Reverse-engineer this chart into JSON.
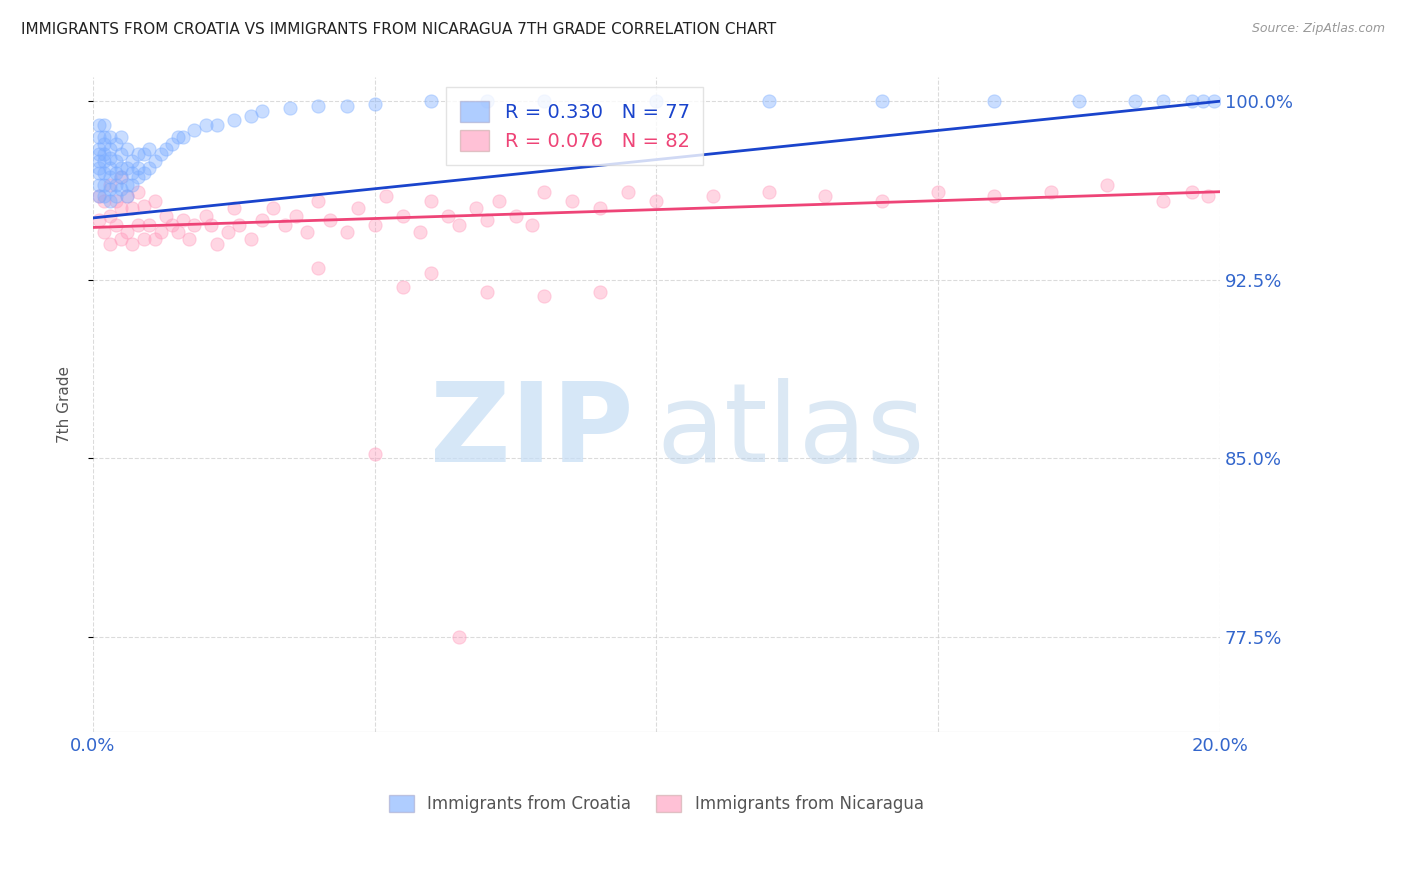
{
  "title": "IMMIGRANTS FROM CROATIA VS IMMIGRANTS FROM NICARAGUA 7TH GRADE CORRELATION CHART",
  "source": "Source: ZipAtlas.com",
  "ylabel": "7th Grade",
  "xlim": [
    0.0,
    0.2
  ],
  "ylim": [
    0.735,
    1.01
  ],
  "yticks": [
    1.0,
    0.925,
    0.85,
    0.775
  ],
  "ytick_labels": [
    "100.0%",
    "92.5%",
    "85.0%",
    "77.5%"
  ],
  "xticks": [
    0.0,
    0.05,
    0.1,
    0.15,
    0.2
  ],
  "xtick_labels": [
    "0.0%",
    "",
    "",
    "",
    "20.0%"
  ],
  "croatia_R": 0.33,
  "croatia_N": 77,
  "nicaragua_R": 0.076,
  "nicaragua_N": 82,
  "croatia_color": "#7aacff",
  "nicaragua_color": "#ff99bb",
  "trend_croatia_color": "#1a44cc",
  "trend_nicaragua_color": "#ee4477",
  "background_color": "#ffffff",
  "grid_color": "#cccccc",
  "title_color": "#222222",
  "axis_label_color": "#555555",
  "right_tick_color": "#3366cc",
  "scatter_size": 90,
  "scatter_alpha": 0.4,
  "croatia_trend_x0": 0.0,
  "croatia_trend_y0": 0.951,
  "croatia_trend_x1": 0.2,
  "croatia_trend_y1": 1.0,
  "nicaragua_trend_x0": 0.0,
  "nicaragua_trend_y0": 0.947,
  "nicaragua_trend_x1": 0.2,
  "nicaragua_trend_y1": 0.962,
  "croatia_x": [
    0.001,
    0.001,
    0.001,
    0.001,
    0.001,
    0.001,
    0.001,
    0.001,
    0.001,
    0.002,
    0.002,
    0.002,
    0.002,
    0.002,
    0.002,
    0.002,
    0.002,
    0.003,
    0.003,
    0.003,
    0.003,
    0.003,
    0.003,
    0.003,
    0.004,
    0.004,
    0.004,
    0.004,
    0.004,
    0.005,
    0.005,
    0.005,
    0.005,
    0.005,
    0.006,
    0.006,
    0.006,
    0.006,
    0.007,
    0.007,
    0.007,
    0.008,
    0.008,
    0.008,
    0.009,
    0.009,
    0.01,
    0.01,
    0.011,
    0.012,
    0.013,
    0.014,
    0.015,
    0.016,
    0.018,
    0.02,
    0.022,
    0.025,
    0.028,
    0.03,
    0.035,
    0.04,
    0.045,
    0.05,
    0.06,
    0.07,
    0.08,
    0.1,
    0.12,
    0.14,
    0.16,
    0.175,
    0.185,
    0.19,
    0.195,
    0.197,
    0.199
  ],
  "croatia_y": [
    0.96,
    0.965,
    0.97,
    0.972,
    0.975,
    0.978,
    0.98,
    0.985,
    0.99,
    0.96,
    0.965,
    0.97,
    0.975,
    0.978,
    0.982,
    0.985,
    0.99,
    0.958,
    0.963,
    0.968,
    0.972,
    0.976,
    0.98,
    0.985,
    0.96,
    0.965,
    0.97,
    0.975,
    0.982,
    0.963,
    0.968,
    0.972,
    0.978,
    0.985,
    0.96,
    0.965,
    0.972,
    0.98,
    0.965,
    0.97,
    0.975,
    0.968,
    0.972,
    0.978,
    0.97,
    0.978,
    0.972,
    0.98,
    0.975,
    0.978,
    0.98,
    0.982,
    0.985,
    0.985,
    0.988,
    0.99,
    0.99,
    0.992,
    0.994,
    0.996,
    0.997,
    0.998,
    0.998,
    0.999,
    1.0,
    1.0,
    1.0,
    1.0,
    1.0,
    1.0,
    1.0,
    1.0,
    1.0,
    1.0,
    1.0,
    1.0,
    1.0
  ],
  "nicaragua_x": [
    0.001,
    0.001,
    0.002,
    0.002,
    0.003,
    0.003,
    0.003,
    0.004,
    0.004,
    0.005,
    0.005,
    0.005,
    0.006,
    0.006,
    0.007,
    0.007,
    0.008,
    0.008,
    0.009,
    0.009,
    0.01,
    0.011,
    0.011,
    0.012,
    0.013,
    0.014,
    0.015,
    0.016,
    0.017,
    0.018,
    0.02,
    0.021,
    0.022,
    0.024,
    0.025,
    0.026,
    0.028,
    0.03,
    0.032,
    0.034,
    0.036,
    0.038,
    0.04,
    0.042,
    0.045,
    0.047,
    0.05,
    0.052,
    0.055,
    0.058,
    0.06,
    0.063,
    0.065,
    0.068,
    0.07,
    0.072,
    0.075,
    0.078,
    0.08,
    0.085,
    0.09,
    0.095,
    0.1,
    0.11,
    0.12,
    0.13,
    0.14,
    0.15,
    0.16,
    0.17,
    0.18,
    0.19,
    0.195,
    0.198,
    0.06,
    0.04,
    0.055,
    0.07,
    0.08,
    0.09,
    0.05,
    0.065
  ],
  "nicaragua_y": [
    0.95,
    0.96,
    0.945,
    0.958,
    0.94,
    0.952,
    0.965,
    0.948,
    0.958,
    0.942,
    0.955,
    0.968,
    0.945,
    0.96,
    0.94,
    0.955,
    0.948,
    0.962,
    0.942,
    0.956,
    0.948,
    0.942,
    0.958,
    0.945,
    0.952,
    0.948,
    0.945,
    0.95,
    0.942,
    0.948,
    0.952,
    0.948,
    0.94,
    0.945,
    0.955,
    0.948,
    0.942,
    0.95,
    0.955,
    0.948,
    0.952,
    0.945,
    0.958,
    0.95,
    0.945,
    0.955,
    0.948,
    0.96,
    0.952,
    0.945,
    0.958,
    0.952,
    0.948,
    0.955,
    0.95,
    0.958,
    0.952,
    0.948,
    0.962,
    0.958,
    0.955,
    0.962,
    0.958,
    0.96,
    0.962,
    0.96,
    0.958,
    0.962,
    0.96,
    0.962,
    0.965,
    0.958,
    0.962,
    0.96,
    0.928,
    0.93,
    0.922,
    0.92,
    0.918,
    0.92,
    0.852,
    0.775
  ]
}
